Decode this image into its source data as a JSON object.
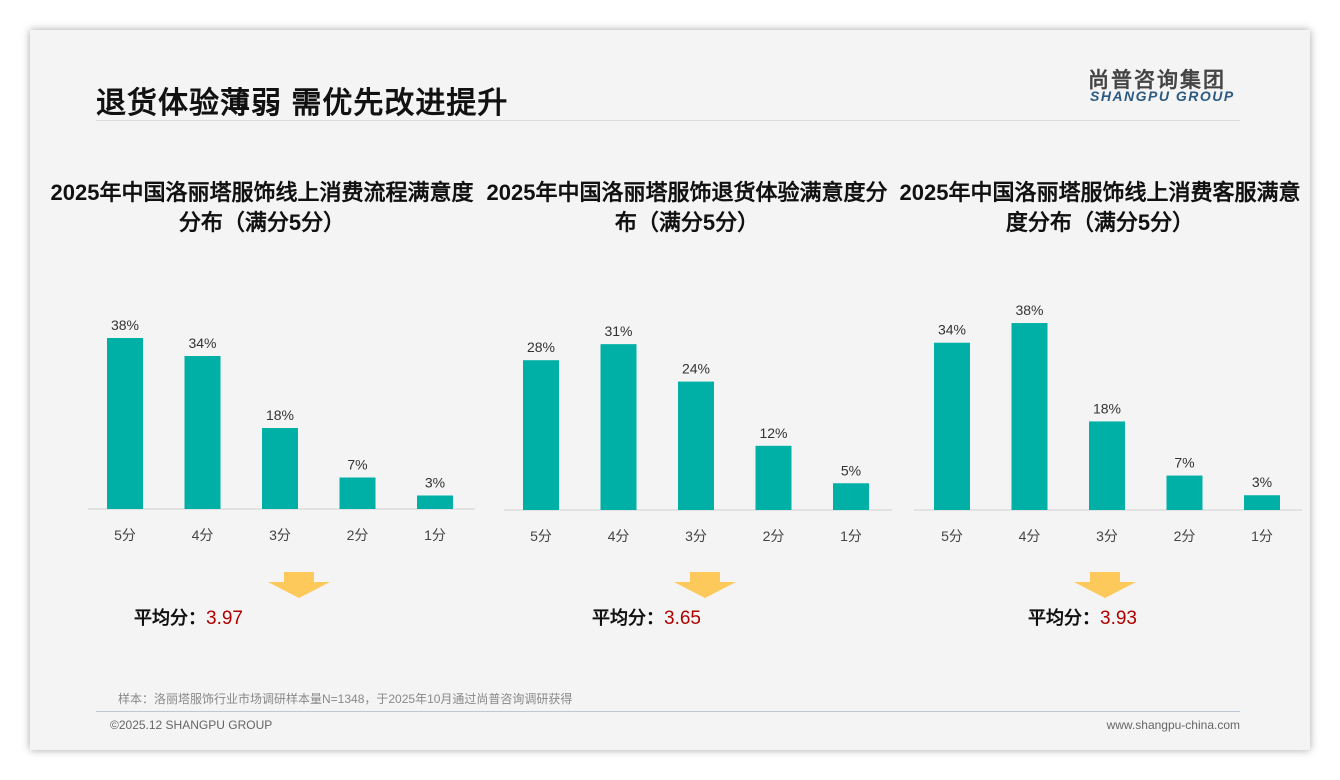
{
  "header": {
    "title": "退货体验薄弱 需优先改进提升",
    "logo_cn": "尚普咨询集团",
    "logo_en": "SHANGPU GROUP"
  },
  "chart_data": [
    {
      "type": "bar",
      "title": "2025年中国洛丽塔服饰线上消费流程满意度分布（满分5分）",
      "categories": [
        "5分",
        "4分",
        "3分",
        "2分",
        "1分"
      ],
      "values": [
        38,
        34,
        18,
        7,
        3
      ],
      "labels": [
        "38%",
        "34%",
        "18%",
        "7%",
        "3%"
      ],
      "unit": "%",
      "avg_label": "平均分：",
      "avg_value": "3.97",
      "color": "#00b0a6"
    },
    {
      "type": "bar",
      "title": "2025年中国洛丽塔服饰退货体验满意度分布（满分5分）",
      "categories": [
        "5分",
        "4分",
        "3分",
        "2分",
        "1分"
      ],
      "values": [
        28,
        31,
        24,
        12,
        5
      ],
      "labels": [
        "28%",
        "31%",
        "24%",
        "12%",
        "5%"
      ],
      "unit": "%",
      "avg_label": "平均分：",
      "avg_value": "3.65",
      "color": "#00b0a6"
    },
    {
      "type": "bar",
      "title": "2025年中国洛丽塔服饰线上消费客服满意度分布（满分5分）",
      "categories": [
        "5分",
        "4分",
        "3分",
        "2分",
        "1分"
      ],
      "values": [
        34,
        38,
        18,
        7,
        3
      ],
      "labels": [
        "34%",
        "38%",
        "18%",
        "7%",
        "3%"
      ],
      "unit": "%",
      "avg_label": "平均分：",
      "avg_value": "3.93",
      "color": "#00b0a6"
    }
  ],
  "footer": {
    "note": "样本：洛丽塔服饰行业市场调研样本量N=1348，于2025年10月通过尚普咨询调研获得",
    "copyright": "©2025.12 SHANGPU GROUP",
    "website": "www.shangpu-china.com"
  },
  "colors": {
    "bar": "#00b0a6",
    "arrow": "#fdc95a",
    "avg": "#b00000"
  }
}
